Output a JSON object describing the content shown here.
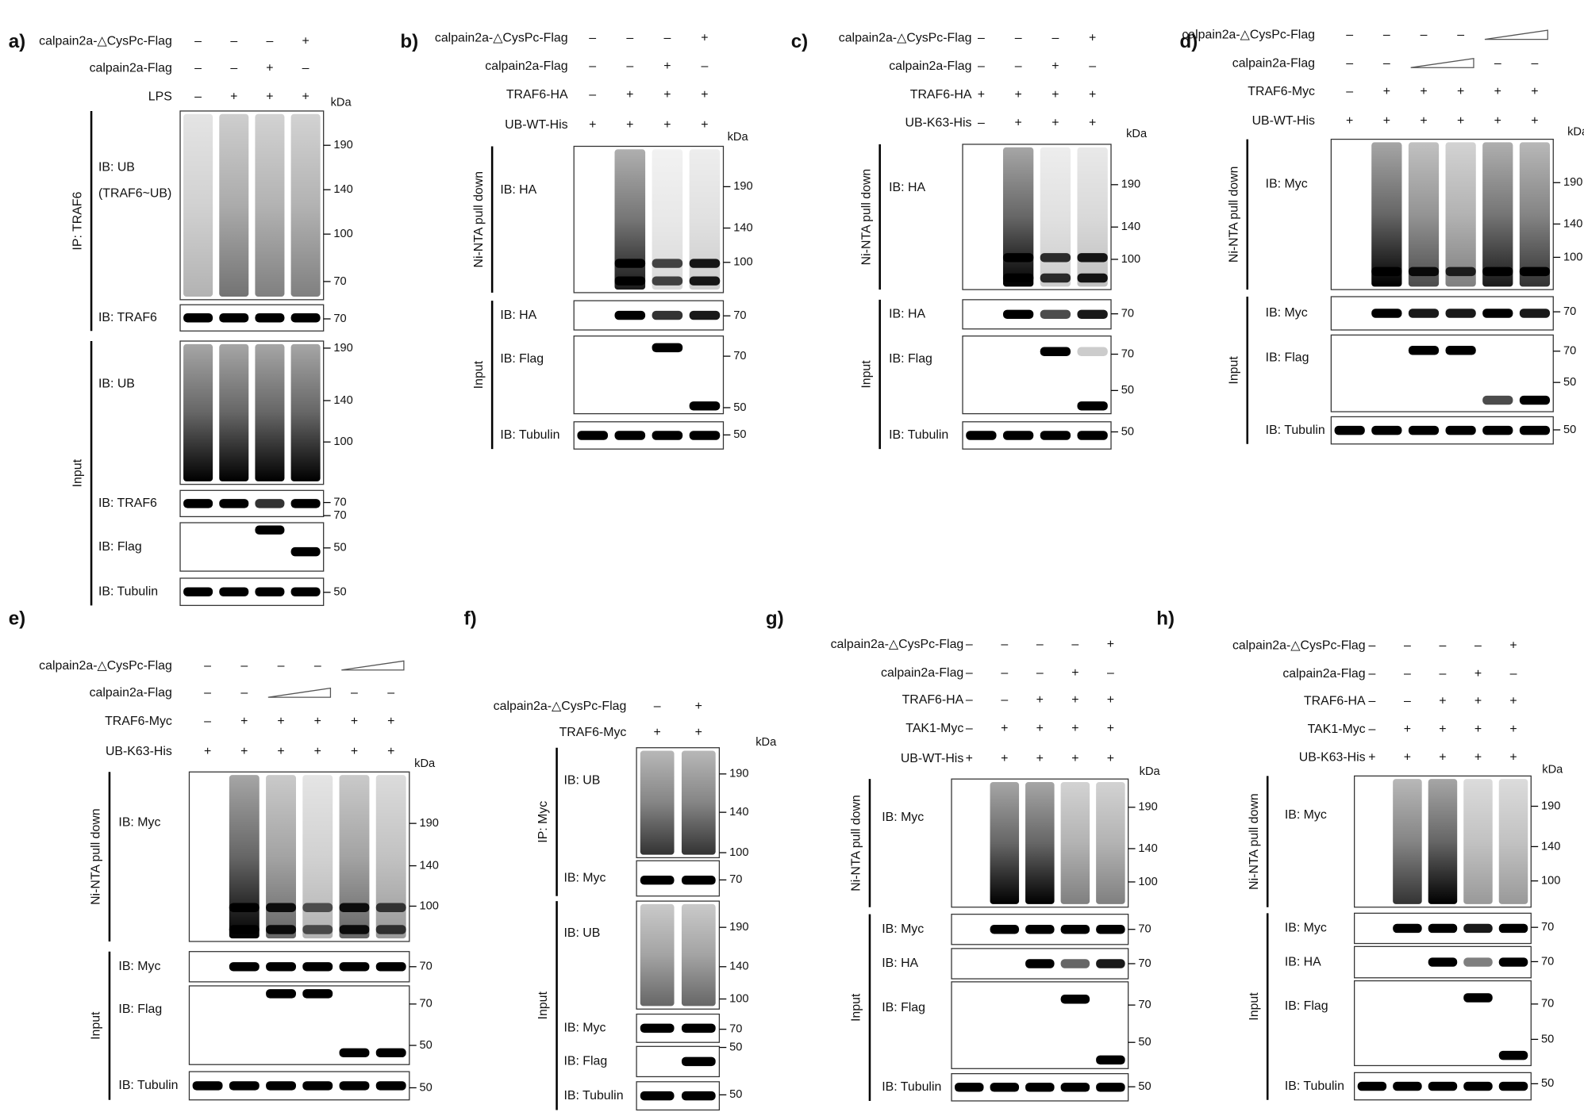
{
  "panels": [
    {
      "label": "a)",
      "kda": "kDa",
      "conditions": [
        {
          "name": "calpain2a-△CysPc-Flag",
          "signs": [
            "–",
            "–",
            "–",
            "+"
          ]
        },
        {
          "name": "calpain2a-Flag",
          "signs": [
            "–",
            "–",
            "+",
            "–"
          ]
        },
        {
          "name": "LPS",
          "signs": [
            "–",
            "+",
            "+",
            "+"
          ]
        }
      ],
      "sections": [
        {
          "name": "IP: TRAF6",
          "blots": [
            {
              "label": "IB: UB",
              "note": "(TRAF6~UB)",
              "markers": [
                190,
                140,
                100,
                70
              ]
            },
            {
              "label": "IB: TRAF6",
              "markers": [
                70
              ]
            }
          ]
        },
        {
          "name": "Input",
          "blots": [
            {
              "label": "IB: UB",
              "markers": [
                190,
                140,
                100
              ]
            },
            {
              "label": "IB: TRAF6",
              "markers": [
                70
              ]
            },
            {
              "label": "IB: Flag",
              "markers": [
                70,
                50
              ]
            },
            {
              "label": "IB: Tubulin",
              "markers": [
                50
              ]
            }
          ]
        }
      ]
    },
    {
      "label": "b)",
      "kda": "kDa",
      "conditions": [
        {
          "name": "calpain2a-△CysPc-Flag",
          "signs": [
            "–",
            "–",
            "–",
            "+"
          ]
        },
        {
          "name": "calpain2a-Flag",
          "signs": [
            "–",
            "–",
            "+",
            "–"
          ]
        },
        {
          "name": "TRAF6-HA",
          "signs": [
            "–",
            "+",
            "+",
            "+"
          ]
        },
        {
          "name": "UB-WT-His",
          "signs": [
            "+",
            "+",
            "+",
            "+"
          ]
        }
      ],
      "sections": [
        {
          "name": "Ni-NTA pull down",
          "blots": [
            {
              "label": "IB: HA",
              "markers": [
                190,
                140,
                100
              ]
            }
          ]
        },
        {
          "name": "Input",
          "blots": [
            {
              "label": "IB: HA",
              "markers": [
                70
              ]
            },
            {
              "label": "IB: Flag",
              "markers": [
                70,
                50
              ]
            },
            {
              "label": "IB: Tubulin",
              "markers": [
                50
              ]
            }
          ]
        }
      ]
    },
    {
      "label": "c)",
      "kda": "kDa",
      "conditions": [
        {
          "name": "calpain2a-△CysPc-Flag",
          "signs": [
            "–",
            "–",
            "–",
            "+"
          ]
        },
        {
          "name": "calpain2a-Flag",
          "signs": [
            "–",
            "–",
            "+",
            "–"
          ]
        },
        {
          "name": "TRAF6-HA",
          "signs": [
            "+",
            "+",
            "+",
            "+"
          ]
        },
        {
          "name": "UB-K63-His",
          "signs": [
            "–",
            "+",
            "+",
            "+"
          ]
        }
      ],
      "sections": [
        {
          "name": "Ni-NTA pull down",
          "blots": [
            {
              "label": "IB: HA",
              "markers": [
                190,
                140,
                100
              ]
            }
          ]
        },
        {
          "name": "Input",
          "blots": [
            {
              "label": "IB: HA",
              "markers": [
                70
              ]
            },
            {
              "label": "IB: Flag",
              "markers": [
                70,
                50
              ]
            },
            {
              "label": "IB: Tubulin",
              "markers": [
                50
              ]
            }
          ]
        }
      ]
    },
    {
      "label": "d)",
      "kda": "kDa",
      "conditions": [
        {
          "name": "calpain2a-△CysPc-Flag",
          "signs": [
            "–",
            "–",
            "–",
            "–",
            null,
            null
          ]
        },
        {
          "name": "calpain2a-Flag",
          "signs": [
            "–",
            "–",
            null,
            null,
            "–",
            "–"
          ]
        },
        {
          "name": "TRAF6-Myc",
          "signs": [
            "–",
            "+",
            "+",
            "+",
            "+",
            "+"
          ]
        },
        {
          "name": "UB-WT-His",
          "signs": [
            "+",
            "+",
            "+",
            "+",
            "+",
            "+"
          ]
        }
      ],
      "sections": [
        {
          "name": "Ni-NTA pull down",
          "blots": [
            {
              "label": "IB: Myc",
              "markers": [
                190,
                140,
                100
              ]
            }
          ]
        },
        {
          "name": "Input",
          "blots": [
            {
              "label": "IB: Myc",
              "markers": [
                70
              ]
            },
            {
              "label": "IB: Flag",
              "markers": [
                70,
                50
              ]
            },
            {
              "label": "IB: Tubulin",
              "markers": [
                50
              ]
            }
          ]
        }
      ]
    },
    {
      "label": "e)",
      "kda": "kDa",
      "conditions": [
        {
          "name": "calpain2a-△CysPc-Flag",
          "signs": [
            "–",
            "–",
            "–",
            "–",
            null,
            null
          ]
        },
        {
          "name": "calpain2a-Flag",
          "signs": [
            "–",
            "–",
            null,
            null,
            "–",
            "–"
          ]
        },
        {
          "name": "TRAF6-Myc",
          "signs": [
            "–",
            "+",
            "+",
            "+",
            "+",
            "+"
          ]
        },
        {
          "name": "UB-K63-His",
          "signs": [
            "+",
            "+",
            "+",
            "+",
            "+",
            "+"
          ]
        }
      ],
      "sections": [
        {
          "name": "Ni-NTA pull down",
          "blots": [
            {
              "label": "IB: Myc",
              "markers": [
                190,
                140,
                100
              ]
            }
          ]
        },
        {
          "name": "Input",
          "blots": [
            {
              "label": "IB: Myc",
              "markers": [
                70
              ]
            },
            {
              "label": "IB: Flag",
              "markers": [
                70,
                50
              ]
            },
            {
              "label": "IB: Tubulin",
              "markers": [
                50
              ]
            }
          ]
        }
      ]
    },
    {
      "label": "f)",
      "kda": "kDa",
      "conditions": [
        {
          "name": "calpain2a-△CysPc-Flag",
          "signs": [
            "–",
            "+"
          ]
        },
        {
          "name": "TRAF6-Myc",
          "signs": [
            "+",
            "+"
          ]
        }
      ],
      "sections": [
        {
          "name": "IP: Myc",
          "blots": [
            {
              "label": "IB: UB",
              "markers": [
                190,
                140,
                100
              ]
            },
            {
              "label": "IB: Myc",
              "markers": [
                70
              ]
            }
          ]
        },
        {
          "name": "Input",
          "blots": [
            {
              "label": "IB: UB",
              "markers": [
                190,
                140,
                100
              ]
            },
            {
              "label": "IB: Myc",
              "markers": [
                70
              ]
            },
            {
              "label": "IB: Flag",
              "markers": [
                50
              ]
            },
            {
              "label": "IB: Tubulin",
              "markers": [
                50
              ]
            }
          ]
        }
      ]
    },
    {
      "label": "g)",
      "kda": "kDa",
      "conditions": [
        {
          "name": "calpain2a-△CysPc-Flag",
          "signs": [
            "–",
            "–",
            "–",
            "–",
            "+"
          ]
        },
        {
          "name": "calpain2a-Flag",
          "signs": [
            "–",
            "–",
            "–",
            "+",
            "–"
          ]
        },
        {
          "name": "TRAF6-HA",
          "signs": [
            "–",
            "–",
            "+",
            "+",
            "+"
          ]
        },
        {
          "name": "TAK1-Myc",
          "signs": [
            "–",
            "+",
            "+",
            "+",
            "+"
          ]
        },
        {
          "name": "UB-WT-His",
          "signs": [
            "+",
            "+",
            "+",
            "+",
            "+"
          ]
        }
      ],
      "sections": [
        {
          "name": "Ni-NTA pull down",
          "blots": [
            {
              "label": "IB: Myc",
              "markers": [
                190,
                140,
                100
              ]
            }
          ]
        },
        {
          "name": "Input",
          "blots": [
            {
              "label": "IB: Myc",
              "markers": [
                70
              ]
            },
            {
              "label": "IB: HA",
              "markers": [
                70
              ]
            },
            {
              "label": "IB: Flag",
              "markers": [
                70,
                50
              ]
            },
            {
              "label": "IB: Tubulin",
              "markers": [
                50
              ]
            }
          ]
        }
      ]
    },
    {
      "label": "h)",
      "kda": "kDa",
      "conditions": [
        {
          "name": "calpain2a-△CysPc-Flag",
          "signs": [
            "–",
            "–",
            "–",
            "–",
            "+"
          ]
        },
        {
          "name": "calpain2a-Flag",
          "signs": [
            "–",
            "–",
            "–",
            "+",
            "–"
          ]
        },
        {
          "name": "TRAF6-HA",
          "signs": [
            "–",
            "–",
            "+",
            "+",
            "+"
          ]
        },
        {
          "name": "TAK1-Myc",
          "signs": [
            "–",
            "+",
            "+",
            "+",
            "+"
          ]
        },
        {
          "name": "UB-K63-His",
          "signs": [
            "+",
            "+",
            "+",
            "+",
            "+"
          ]
        }
      ],
      "sections": [
        {
          "name": "Ni-NTA pull down",
          "blots": [
            {
              "label": "IB: Myc",
              "markers": [
                190,
                140,
                100
              ]
            }
          ]
        },
        {
          "name": "Input",
          "blots": [
            {
              "label": "IB: Myc",
              "markers": [
                70
              ]
            },
            {
              "label": "IB: HA",
              "markers": [
                70
              ]
            },
            {
              "label": "IB: Flag",
              "markers": [
                70,
                50
              ]
            },
            {
              "label": "IB: Tubulin",
              "markers": [
                50
              ]
            }
          ]
        }
      ]
    }
  ]
}
